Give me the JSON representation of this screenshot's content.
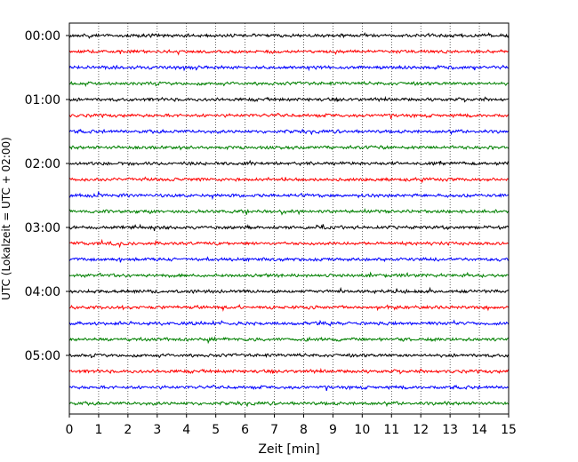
{
  "chart_data": {
    "type": "line",
    "chart_kind": "helicorder",
    "xlabel": "Zeit  [min]",
    "ylabel": "UTC (Lokalzeit = UTC + 02:00)",
    "x_range": [
      0,
      15
    ],
    "x_ticks": [
      0,
      1,
      2,
      3,
      4,
      5,
      6,
      7,
      8,
      9,
      10,
      11,
      12,
      13,
      14,
      15
    ],
    "x_tick_labels": [
      "0",
      "1",
      "2",
      "3",
      "4",
      "5",
      "6",
      "7",
      "8",
      "9",
      "10",
      "11",
      "12",
      "13",
      "14",
      "15"
    ],
    "y_tick_labels": [
      "00:00",
      "01:00",
      "02:00",
      "03:00",
      "04:00",
      "05:00"
    ],
    "y_tick_hours": [
      0,
      1,
      2,
      3,
      4,
      5
    ],
    "grid": "vertical-dotted",
    "line_color_cycle": [
      "#000000",
      "#ff0000",
      "#0000ff",
      "#008000"
    ],
    "traces": [
      {
        "start": "00:00",
        "color": "#000000"
      },
      {
        "start": "00:15",
        "color": "#ff0000"
      },
      {
        "start": "00:30",
        "color": "#0000ff"
      },
      {
        "start": "00:45",
        "color": "#008000"
      },
      {
        "start": "01:00",
        "color": "#000000"
      },
      {
        "start": "01:15",
        "color": "#ff0000"
      },
      {
        "start": "01:30",
        "color": "#0000ff"
      },
      {
        "start": "01:45",
        "color": "#008000"
      },
      {
        "start": "02:00",
        "color": "#000000"
      },
      {
        "start": "02:15",
        "color": "#ff0000"
      },
      {
        "start": "02:30",
        "color": "#0000ff"
      },
      {
        "start": "02:45",
        "color": "#008000"
      },
      {
        "start": "03:00",
        "color": "#000000"
      },
      {
        "start": "03:15",
        "color": "#ff0000"
      },
      {
        "start": "03:30",
        "color": "#0000ff"
      },
      {
        "start": "03:45",
        "color": "#008000"
      },
      {
        "start": "04:00",
        "color": "#000000"
      },
      {
        "start": "04:15",
        "color": "#ff0000"
      },
      {
        "start": "04:30",
        "color": "#0000ff"
      },
      {
        "start": "04:45",
        "color": "#008000"
      },
      {
        "start": "05:00",
        "color": "#000000"
      },
      {
        "start": "05:15",
        "color": "#ff0000"
      },
      {
        "start": "05:30",
        "color": "#0000ff"
      },
      {
        "start": "05:45",
        "color": "#008000"
      }
    ]
  }
}
